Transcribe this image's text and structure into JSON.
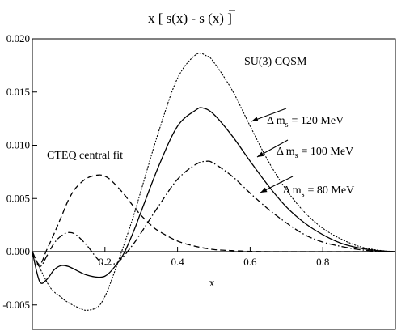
{
  "chart_data": {
    "type": "line",
    "title": "x [ s(x) - s̄ (x) ]",
    "xlabel": "x",
    "ylabel": "",
    "xlim": [
      0.0,
      1.0
    ],
    "ylim": [
      -0.0073,
      0.02
    ],
    "grid": false,
    "x_ticks": [
      {
        "v": 0.2,
        "label": "0.2"
      },
      {
        "v": 0.4,
        "label": "0.4"
      },
      {
        "v": 0.6,
        "label": "0.6"
      },
      {
        "v": 0.8,
        "label": "0.8"
      }
    ],
    "y_ticks": [
      {
        "v": -0.005,
        "label": "-0.005"
      },
      {
        "v": 0.0,
        "label": "0.000"
      },
      {
        "v": 0.005,
        "label": "0.005"
      },
      {
        "v": 0.01,
        "label": "0.010"
      },
      {
        "v": 0.015,
        "label": "0.015"
      },
      {
        "v": 0.02,
        "label": "0.020"
      }
    ],
    "annotations": [
      {
        "text": "SU(3) CQSM"
      },
      {
        "text": "CTEQ central fit"
      }
    ],
    "series": [
      {
        "name": "Δ m_s = 120 MeV",
        "style": "dotted",
        "x": [
          0.0,
          0.02,
          0.05,
          0.08,
          0.1,
          0.13,
          0.15,
          0.18,
          0.2,
          0.22,
          0.25,
          0.28,
          0.3,
          0.35,
          0.4,
          0.45,
          0.48,
          0.5,
          0.55,
          0.6,
          0.65,
          0.7,
          0.75,
          0.8,
          0.85,
          0.9,
          0.95,
          1.0
        ],
        "values": [
          0.0,
          -0.0015,
          -0.0034,
          -0.0043,
          -0.0048,
          -0.0053,
          -0.0055,
          -0.0052,
          -0.0042,
          -0.0025,
          0.0004,
          0.0035,
          0.0058,
          0.0115,
          0.0163,
          0.0185,
          0.0184,
          0.0178,
          0.0152,
          0.0118,
          0.0085,
          0.0058,
          0.0037,
          0.0022,
          0.0012,
          0.0005,
          0.00015,
          0.0
        ]
      },
      {
        "name": "Δ m_s = 100 MeV",
        "style": "solid",
        "x": [
          0.0,
          0.02,
          0.04,
          0.06,
          0.08,
          0.1,
          0.13,
          0.15,
          0.18,
          0.2,
          0.22,
          0.25,
          0.28,
          0.3,
          0.35,
          0.4,
          0.45,
          0.47,
          0.5,
          0.55,
          0.6,
          0.65,
          0.7,
          0.75,
          0.8,
          0.85,
          0.9,
          0.95,
          1.0
        ],
        "values": [
          0.0,
          -0.0028,
          -0.0026,
          -0.0017,
          -0.0013,
          -0.0014,
          -0.0019,
          -0.0022,
          -0.0024,
          -0.0023,
          -0.0017,
          -0.0003,
          0.002,
          0.0038,
          0.0082,
          0.0118,
          0.0133,
          0.0135,
          0.0129,
          0.0109,
          0.0085,
          0.0062,
          0.0042,
          0.0027,
          0.0016,
          0.0008,
          0.00035,
          0.0001,
          0.0
        ]
      },
      {
        "name": "Δ m_s = 80 MeV",
        "style": "dashdot",
        "x": [
          0.0,
          0.02,
          0.04,
          0.06,
          0.08,
          0.1,
          0.12,
          0.15,
          0.18,
          0.2,
          0.23,
          0.25,
          0.28,
          0.3,
          0.35,
          0.4,
          0.45,
          0.48,
          0.5,
          0.55,
          0.6,
          0.65,
          0.7,
          0.75,
          0.8,
          0.85,
          0.9,
          0.95,
          1.0
        ],
        "values": [
          0.0,
          -0.0014,
          -0.0004,
          0.0008,
          0.0015,
          0.0018,
          0.0016,
          0.0006,
          -0.0007,
          -0.0012,
          -0.0011,
          -0.0005,
          0.0008,
          0.0018,
          0.0044,
          0.0068,
          0.0082,
          0.0085,
          0.0083,
          0.0071,
          0.0055,
          0.004,
          0.0027,
          0.0016,
          0.0009,
          0.0005,
          0.0002,
          5e-05,
          0.0
        ]
      },
      {
        "name": "CTEQ central fit",
        "style": "dashed",
        "x": [
          0.0,
          0.02,
          0.04,
          0.06,
          0.08,
          0.1,
          0.12,
          0.15,
          0.18,
          0.2,
          0.22,
          0.25,
          0.28,
          0.3,
          0.33,
          0.35,
          0.4,
          0.45,
          0.5,
          0.55,
          0.6,
          0.65,
          0.7,
          0.8,
          0.9,
          1.0
        ],
        "values": [
          0.0,
          -0.0012,
          0.0002,
          0.0017,
          0.0033,
          0.0049,
          0.006,
          0.0069,
          0.0072,
          0.0071,
          0.0066,
          0.0055,
          0.0042,
          0.0034,
          0.0024,
          0.0019,
          0.001,
          0.0005,
          0.0002,
          0.0001,
          3e-05,
          0.0,
          0.0,
          0.0,
          0.0,
          0.0
        ]
      }
    ],
    "legend_labels": [
      {
        "series": 0,
        "prefix": "Δ m",
        "sub": "s",
        "suffix": "= 120 MeV"
      },
      {
        "series": 1,
        "prefix": "Δ m",
        "sub": "s",
        "suffix": "= 100 MeV"
      },
      {
        "series": 2,
        "prefix": "Δ m",
        "sub": "s",
        "suffix": "= 80 MeV"
      }
    ]
  }
}
